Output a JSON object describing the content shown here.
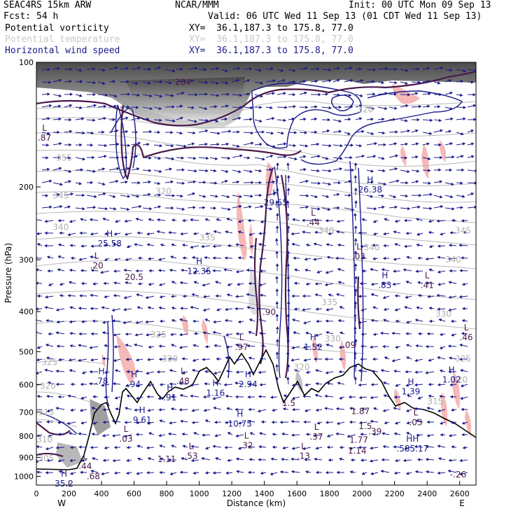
{
  "header": {
    "model": "SEAC4RS 15km ARW",
    "center": "NCAR/MMM",
    "init": "Init: 00 UTC Mon 09 Sep 13",
    "fcst_label": "Fcst:",
    "fcst_value": "54 h",
    "valid": "Valid: 06 UTC Wed 11 Sep 13 (01 CDT Wed 11 Sep 13)",
    "fields": [
      {
        "name": "Potential vorticity",
        "xy": "XY=  36.1,187.3 to 175.8, 77.0",
        "color": "#000000"
      },
      {
        "name": "Potential temperature",
        "xy": "XY=  36.1,187.3 to 175.8, 77.0",
        "color": "#c8c8c8"
      },
      {
        "name": "Horizontal wind speed",
        "xy": "XY=  36.1,187.3 to 175.8, 77.0",
        "color": "#1a1a8c"
      }
    ]
  },
  "chart_data": {
    "type": "cross-section",
    "xlabel": "Distance (km)",
    "ylabel": "Pressure (hPa)",
    "xlim": [
      0,
      2700
    ],
    "ylim": [
      1050,
      100
    ],
    "x_ticks": [
      "0",
      "200",
      "400",
      "600",
      "800",
      "1000",
      "1200",
      "1400",
      "1600",
      "1800",
      "2000",
      "2200",
      "2400",
      "2600"
    ],
    "y_ticks": [
      "100",
      "200",
      "300",
      "400",
      "500",
      "600",
      "700",
      "800",
      "900",
      "1000"
    ],
    "x_end_labels": {
      "left": "W",
      "right": "E"
    },
    "theta_labels": [
      {
        "x": 170,
        "p": 170,
        "text": "355"
      },
      {
        "x": 150,
        "p": 210,
        "text": "345"
      },
      {
        "x": 150,
        "p": 250,
        "text": "340"
      },
      {
        "x": 780,
        "p": 205,
        "text": "320"
      },
      {
        "x": 1050,
        "p": 265,
        "text": "335"
      },
      {
        "x": 2020,
        "p": 130,
        "text": "320"
      },
      {
        "x": 1780,
        "p": 255,
        "text": "340"
      },
      {
        "x": 2060,
        "p": 280,
        "text": "340"
      },
      {
        "x": 1800,
        "p": 380,
        "text": "335"
      },
      {
        "x": 2560,
        "p": 300,
        "text": "340"
      },
      {
        "x": 2500,
        "p": 405,
        "text": "330"
      },
      {
        "x": 2620,
        "p": 255,
        "text": "345"
      },
      {
        "x": 750,
        "p": 455,
        "text": "325"
      },
      {
        "x": 1820,
        "p": 465,
        "text": "330"
      },
      {
        "x": 80,
        "p": 530,
        "text": "325"
      },
      {
        "x": 820,
        "p": 520,
        "text": "320"
      },
      {
        "x": 1630,
        "p": 545,
        "text": "320"
      },
      {
        "x": 2620,
        "p": 520,
        "text": "325"
      },
      {
        "x": 70,
        "p": 605,
        "text": "320"
      },
      {
        "x": 2600,
        "p": 585,
        "text": "320"
      },
      {
        "x": 2450,
        "p": 660,
        "text": "315"
      },
      {
        "x": 60,
        "p": 700,
        "text": "315"
      },
      {
        "x": 50,
        "p": 815,
        "text": "310"
      },
      {
        "x": 60,
        "p": 905,
        "text": "305"
      }
    ],
    "extrema": [
      {
        "x": 50,
        "p": 150,
        "type": "L",
        "value": ".87"
      },
      {
        "x": 450,
        "p": 270,
        "type": "H",
        "value": "25.58"
      },
      {
        "x": 370,
        "p": 305,
        "type": "L",
        "value": ".20"
      },
      {
        "x": 600,
        "p": 325,
        "type": "",
        "value": "20.5"
      },
      {
        "x": 1000,
        "p": 315,
        "type": "H",
        "value": "12.35"
      },
      {
        "x": 1470,
        "p": 215,
        "type": "H",
        "value": "29.55"
      },
      {
        "x": 1700,
        "p": 240,
        "type": "L",
        "value": ".44"
      },
      {
        "x": 2050,
        "p": 200,
        "type": "H",
        "value": "26.38"
      },
      {
        "x": 1980,
        "p": 290,
        "type": "L",
        "value": ".03"
      },
      {
        "x": 2140,
        "p": 340,
        "type": "H",
        "value": ".83"
      },
      {
        "x": 2400,
        "p": 340,
        "type": "L",
        "value": ".41"
      },
      {
        "x": 1430,
        "p": 395,
        "type": "",
        "value": ".90"
      },
      {
        "x": 1260,
        "p": 480,
        "type": "L",
        "value": ".97"
      },
      {
        "x": 1700,
        "p": 480,
        "type": "H",
        "value": "1.52"
      },
      {
        "x": 1920,
        "p": 475,
        "type": "",
        "value": ".09"
      },
      {
        "x": 2640,
        "p": 455,
        "type": "L",
        "value": ".46"
      },
      {
        "x": 400,
        "p": 580,
        "type": "H",
        "value": ".78"
      },
      {
        "x": 600,
        "p": 590,
        "type": "H",
        "value": ".94"
      },
      {
        "x": 900,
        "p": 580,
        "type": "L",
        "value": ".48"
      },
      {
        "x": 820,
        "p": 635,
        "type": "H",
        "value": ".91"
      },
      {
        "x": 1100,
        "p": 620,
        "type": "H",
        "value": "1.16"
      },
      {
        "x": 1300,
        "p": 590,
        "type": "H",
        "value": "2.94"
      },
      {
        "x": 1550,
        "p": 655,
        "type": "",
        "value": "1.5"
      },
      {
        "x": 2300,
        "p": 615,
        "type": "H",
        "value": "1.39"
      },
      {
        "x": 2550,
        "p": 575,
        "type": "H",
        "value": "1.02"
      },
      {
        "x": 650,
        "p": 720,
        "type": "H",
        "value": "9.61"
      },
      {
        "x": 1250,
        "p": 735,
        "type": "H",
        "value": "10.75"
      },
      {
        "x": 1990,
        "p": 685,
        "type": "",
        "value": "1.87"
      },
      {
        "x": 2020,
        "p": 745,
        "type": "",
        "value": "1.5"
      },
      {
        "x": 2080,
        "p": 768,
        "type": "",
        "value": ".39"
      },
      {
        "x": 2330,
        "p": 730,
        "type": "L",
        "value": ".03"
      },
      {
        "x": 550,
        "p": 800,
        "type": "L",
        "value": ".03"
      },
      {
        "x": 1720,
        "p": 790,
        "type": "L",
        "value": ".37"
      },
      {
        "x": 1980,
        "p": 805,
        "type": "",
        "value": "1.77"
      },
      {
        "x": 1290,
        "p": 830,
        "type": "L",
        "value": ".32"
      },
      {
        "x": 950,
        "p": 880,
        "type": "L",
        "value": ".53"
      },
      {
        "x": 800,
        "p": 895,
        "type": "",
        "value": "1.11"
      },
      {
        "x": 1640,
        "p": 880,
        "type": "L",
        "value": ".13"
      },
      {
        "x": 1970,
        "p": 855,
        "type": "",
        "value": "1.14"
      },
      {
        "x": 2310,
        "p": 845,
        "type": "HH",
        "value": ".585.17"
      },
      {
        "x": 300,
        "p": 930,
        "type": "L",
        "value": ".44"
      },
      {
        "x": 350,
        "p": 985,
        "type": "",
        "value": ".68"
      },
      {
        "x": 170,
        "p": 1025,
        "type": "H",
        "value": "35.2"
      },
      {
        "x": 2590,
        "p": 975,
        "type": "",
        "value": "-.26"
      },
      {
        "x": 900,
        "p": 110,
        "type": "",
        "value": "204"
      }
    ]
  }
}
